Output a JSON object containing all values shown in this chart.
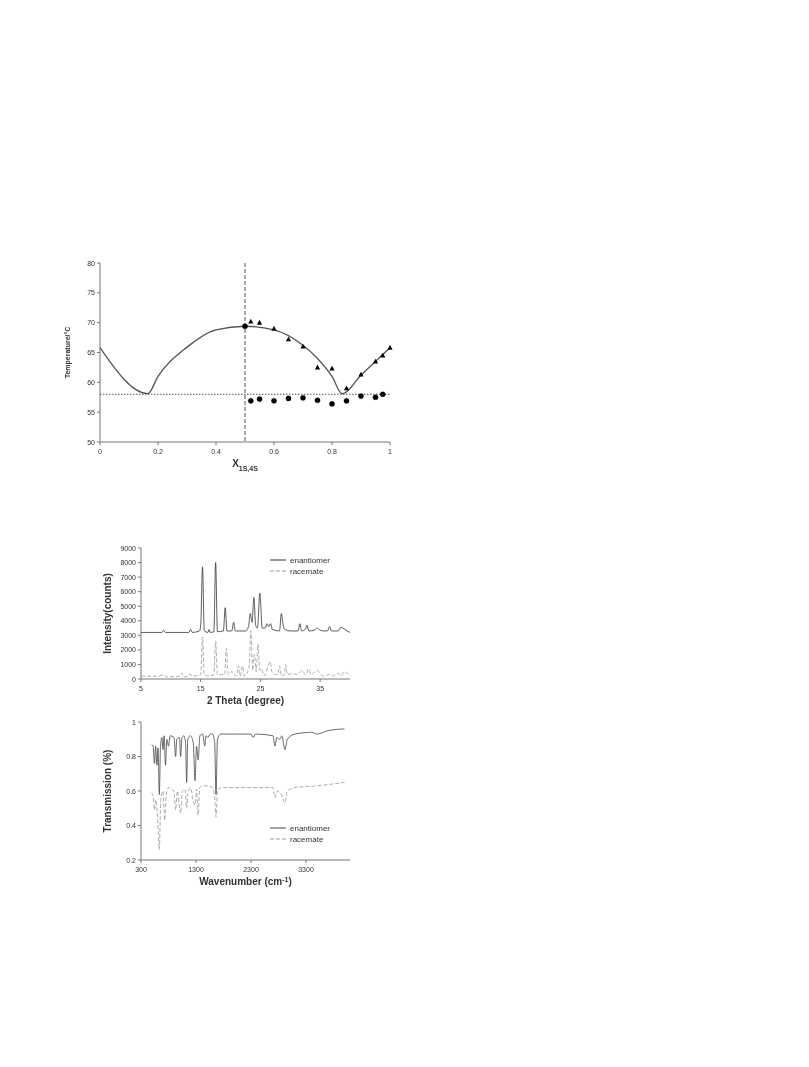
{
  "chart_data": [
    {
      "type": "line",
      "xlabel": "X$_{1S,4S}$",
      "ylabel": "Temperature/°C",
      "xlim": [
        0,
        1
      ],
      "xticks": [
        0,
        0.2,
        0.4,
        0.6,
        0.8,
        1
      ],
      "ylim": [
        50,
        80
      ],
      "yticks": [
        50,
        55,
        60,
        65,
        70,
        75,
        80
      ],
      "ref_lines": [
        {
          "axis": "y",
          "value": 58,
          "line_style": "dotted",
          "color": "#555555"
        },
        {
          "axis": "x",
          "value": 0.5,
          "line_style": "dashed",
          "color": "#555555"
        }
      ],
      "series": [
        {
          "type": "line",
          "color": "#555555",
          "x": [
            0,
            0.165,
            0.2,
            0.3,
            0.4,
            0.5,
            0.6,
            0.7,
            0.75,
            0.8,
            0.835,
            0.9,
            1
          ],
          "values": [
            65.8,
            58.1,
            61,
            65.9,
            68.8,
            69.4,
            68.8,
            66.2,
            64,
            61,
            58.1,
            61.2,
            65.8
          ]
        },
        {
          "type": "scatter",
          "marker": "triangle",
          "color": "#000000",
          "x": [
            0.52,
            0.55,
            0.6,
            0.65,
            0.7,
            0.75,
            0.8,
            0.85,
            0.9,
            0.95,
            0.975,
            1
          ],
          "values": [
            70.2,
            70,
            69,
            67.2,
            66,
            62.5,
            62.3,
            59,
            61.3,
            63.5,
            64.5,
            65.8
          ]
        },
        {
          "type": "scatter",
          "marker": "circle",
          "color": "#000000",
          "x": [
            0.5,
            0.52,
            0.55,
            0.6,
            0.65,
            0.7,
            0.75,
            0.8,
            0.85,
            0.9,
            0.95,
            0.975
          ],
          "values": [
            69.4,
            56.9,
            57.2,
            56.9,
            57.3,
            57.4,
            57,
            56.4,
            56.9,
            57.7,
            57.5,
            58
          ]
        }
      ]
    },
    {
      "type": "line",
      "xlabel": "2 Theta (degree)",
      "ylabel": "Intensity(counts)",
      "xlim": [
        5,
        40
      ],
      "xticks": [
        5,
        15,
        25,
        35
      ],
      "ylim": [
        0,
        9000
      ],
      "yticks": [
        0,
        1000,
        2000,
        3000,
        4000,
        5000,
        6000,
        7000,
        8000,
        9000
      ],
      "legend": "top right",
      "series": [
        {
          "name": "enantiomer",
          "color": "#333333",
          "x": [
            5,
            8.5,
            8.8,
            9.1,
            13,
            13.3,
            13.6,
            14.8,
            15,
            15.3,
            15.6,
            16.2,
            16.4,
            16.6,
            17.2,
            17.5,
            17.8,
            18.8,
            19.1,
            19.4,
            20.2,
            20.5,
            20.8,
            22.5,
            23,
            23.3,
            23.6,
            23.9,
            24.2,
            24.5,
            24.9,
            25.3,
            25.8,
            26.1,
            26.4,
            26.7,
            27,
            28.2,
            28.5,
            28.8,
            29.1,
            30,
            31.3,
            31.6,
            31.9,
            32.5,
            32.8,
            33.1,
            34,
            34.5,
            35,
            35.8,
            36.2,
            36.6,
            36.9,
            38,
            38.5,
            39,
            39.5,
            40
          ],
          "values": [
            3200,
            3200,
            3350,
            3200,
            3200,
            3400,
            3200,
            3300,
            3700,
            7700,
            3300,
            3200,
            3400,
            3200,
            3250,
            8000,
            3250,
            3300,
            4900,
            3300,
            3300,
            3900,
            3300,
            3300,
            3600,
            4500,
            3900,
            5600,
            3700,
            3500,
            5900,
            3500,
            3500,
            3800,
            3600,
            3800,
            3400,
            3300,
            4500,
            3700,
            3400,
            3300,
            3300,
            3800,
            3300,
            3400,
            3700,
            3300,
            3350,
            3500,
            3350,
            3300,
            3300,
            3600,
            3300,
            3300,
            3550,
            3450,
            3300,
            3200
          ]
        },
        {
          "name": "racemate",
          "color": "#999999",
          "line_style": "dashed",
          "x": [
            5,
            8,
            8.8,
            9.2,
            11.5,
            11.8,
            12.1,
            13,
            13.2,
            13.5,
            15,
            15.3,
            15.6,
            16.2,
            17.2,
            17.5,
            17.8,
            19,
            19.3,
            19.6,
            20.2,
            21,
            21.3,
            21.6,
            22,
            22.3,
            23.1,
            23.4,
            23.7,
            24,
            24.3,
            24.6,
            24.9,
            25.2,
            25.6,
            26.2,
            26.6,
            27,
            27.9,
            28.2,
            28.5,
            29,
            29.2,
            29.5,
            30.5,
            31,
            31.7,
            32,
            32.5,
            33.1,
            33.5,
            34.5,
            35,
            35.5,
            36.5,
            37.2,
            38,
            38.5,
            39,
            39.5,
            40
          ],
          "values": [
            200,
            200,
            300,
            150,
            200,
            400,
            150,
            200,
            350,
            200,
            300,
            2900,
            300,
            200,
            300,
            2600,
            300,
            300,
            2100,
            300,
            500,
            200,
            900,
            200,
            900,
            200,
            800,
            3300,
            600,
            1700,
            500,
            2400,
            600,
            700,
            200,
            800,
            1200,
            400,
            300,
            900,
            200,
            300,
            1000,
            300,
            400,
            300,
            500,
            600,
            300,
            700,
            300,
            600,
            400,
            200,
            300,
            200,
            400,
            200,
            500,
            400,
            200
          ]
        }
      ]
    },
    {
      "type": "line",
      "xlabel": "Wavenumber (cm$^{-1}$)",
      "ylabel": "Transmission (%)",
      "xlim": [
        300,
        4100
      ],
      "xticks": [
        300,
        1300,
        2300,
        3300
      ],
      "ylim": [
        0.2,
        1
      ],
      "yticks": [
        0.2,
        0.4,
        0.6,
        0.8,
        1
      ],
      "legend": "bottom right",
      "series": [
        {
          "name": "enantiomer",
          "color": "#444444",
          "x": [
            494,
            520,
            545,
            565,
            590,
            610,
            633,
            655,
            680,
            700,
            720,
            745,
            770,
            800,
            830,
            900,
            930,
            950,
            1000,
            1020,
            1045,
            1080,
            1110,
            1130,
            1150,
            1200,
            1250,
            1282,
            1310,
            1340,
            1370,
            1420,
            1460,
            1480,
            1510,
            1560,
            1600,
            1640,
            1664,
            1690,
            1750,
            2000,
            2300,
            2340,
            2380,
            2700,
            2736,
            2770,
            2820,
            2860,
            2918,
            2960,
            3100,
            3400,
            3500,
            3700,
            4000
          ],
          "values": [
            0.87,
            0.86,
            0.76,
            0.86,
            0.75,
            0.85,
            0.58,
            0.86,
            0.91,
            0.84,
            0.92,
            0.75,
            0.9,
            0.86,
            0.92,
            0.91,
            0.8,
            0.9,
            0.91,
            0.8,
            0.91,
            0.92,
            0.88,
            0.65,
            0.9,
            0.92,
            0.88,
            0.66,
            0.86,
            0.78,
            0.92,
            0.93,
            0.86,
            0.92,
            0.91,
            0.93,
            0.93,
            0.88,
            0.58,
            0.9,
            0.93,
            0.93,
            0.93,
            0.91,
            0.93,
            0.92,
            0.86,
            0.91,
            0.9,
            0.92,
            0.84,
            0.9,
            0.93,
            0.94,
            0.93,
            0.95,
            0.96
          ]
        },
        {
          "name": "racemate",
          "color": "#999999",
          "line_style": "dashed",
          "x": [
            494,
            520,
            545,
            570,
            600,
            633,
            660,
            700,
            730,
            760,
            800,
            900,
            930,
            960,
            1020,
            1050,
            1100,
            1130,
            1160,
            1200,
            1250,
            1282,
            1310,
            1340,
            1370,
            1420,
            1500,
            1600,
            1640,
            1664,
            1690,
            1750,
            2000,
            2300,
            2700,
            2736,
            2780,
            2850,
            2918,
            2960,
            3100,
            3500,
            4000
          ],
          "values": [
            0.59,
            0.57,
            0.49,
            0.55,
            0.45,
            0.26,
            0.55,
            0.6,
            0.43,
            0.58,
            0.62,
            0.6,
            0.49,
            0.6,
            0.47,
            0.6,
            0.61,
            0.5,
            0.6,
            0.62,
            0.54,
            0.52,
            0.61,
            0.46,
            0.62,
            0.63,
            0.63,
            0.62,
            0.56,
            0.45,
            0.6,
            0.62,
            0.62,
            0.62,
            0.62,
            0.56,
            0.6,
            0.58,
            0.53,
            0.6,
            0.62,
            0.63,
            0.65
          ]
        }
      ]
    }
  ]
}
